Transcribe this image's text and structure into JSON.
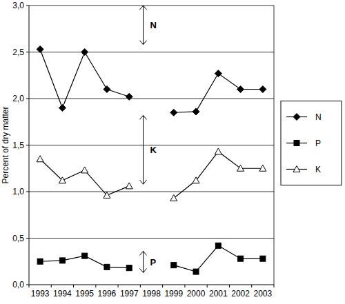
{
  "chart_data": {
    "type": "line",
    "y_label": "Percent of dry matter",
    "categories": [
      "1993",
      "1994",
      "1995",
      "1996",
      "1997",
      "1998",
      "1999",
      "2000",
      "2001",
      "2002",
      "2003"
    ],
    "series": [
      {
        "name": "N",
        "color": "#000000",
        "marker": "diamond",
        "line_style": "solid",
        "values": [
          2.53,
          1.9,
          2.5,
          2.1,
          2.02,
          null,
          1.85,
          1.86,
          2.27,
          2.1,
          2.1
        ]
      },
      {
        "name": "P",
        "color": "#000000",
        "marker": "square",
        "line_style": "solid",
        "values": [
          0.25,
          0.26,
          0.31,
          0.19,
          0.18,
          null,
          0.21,
          0.14,
          0.42,
          0.28,
          0.28
        ]
      },
      {
        "name": "K",
        "color": "#000000",
        "marker": "triangle",
        "line_style": "solid",
        "values": [
          1.35,
          1.12,
          1.23,
          0.96,
          1.06,
          null,
          0.93,
          1.12,
          1.43,
          1.25,
          1.25
        ]
      }
    ],
    "annotations": [
      {
        "text": "N",
        "from": 2.58,
        "to": 3.0
      },
      {
        "text": "K",
        "from": 1.08,
        "to": 1.82
      },
      {
        "text": "P",
        "from": 0.13,
        "to": 0.36
      }
    ],
    "ylim": [
      0,
      3
    ],
    "yticks": [
      {
        "value": 0,
        "label": "0,0"
      },
      {
        "value": 0.5,
        "label": "0,5"
      },
      {
        "value": 1,
        "label": "1,0"
      },
      {
        "value": 1.5,
        "label": "1,5"
      },
      {
        "value": 2,
        "label": "2,0"
      },
      {
        "value": 2.5,
        "label": "2,5"
      },
      {
        "value": 3,
        "label": "3,0"
      }
    ],
    "grid": true,
    "legend": "right"
  }
}
